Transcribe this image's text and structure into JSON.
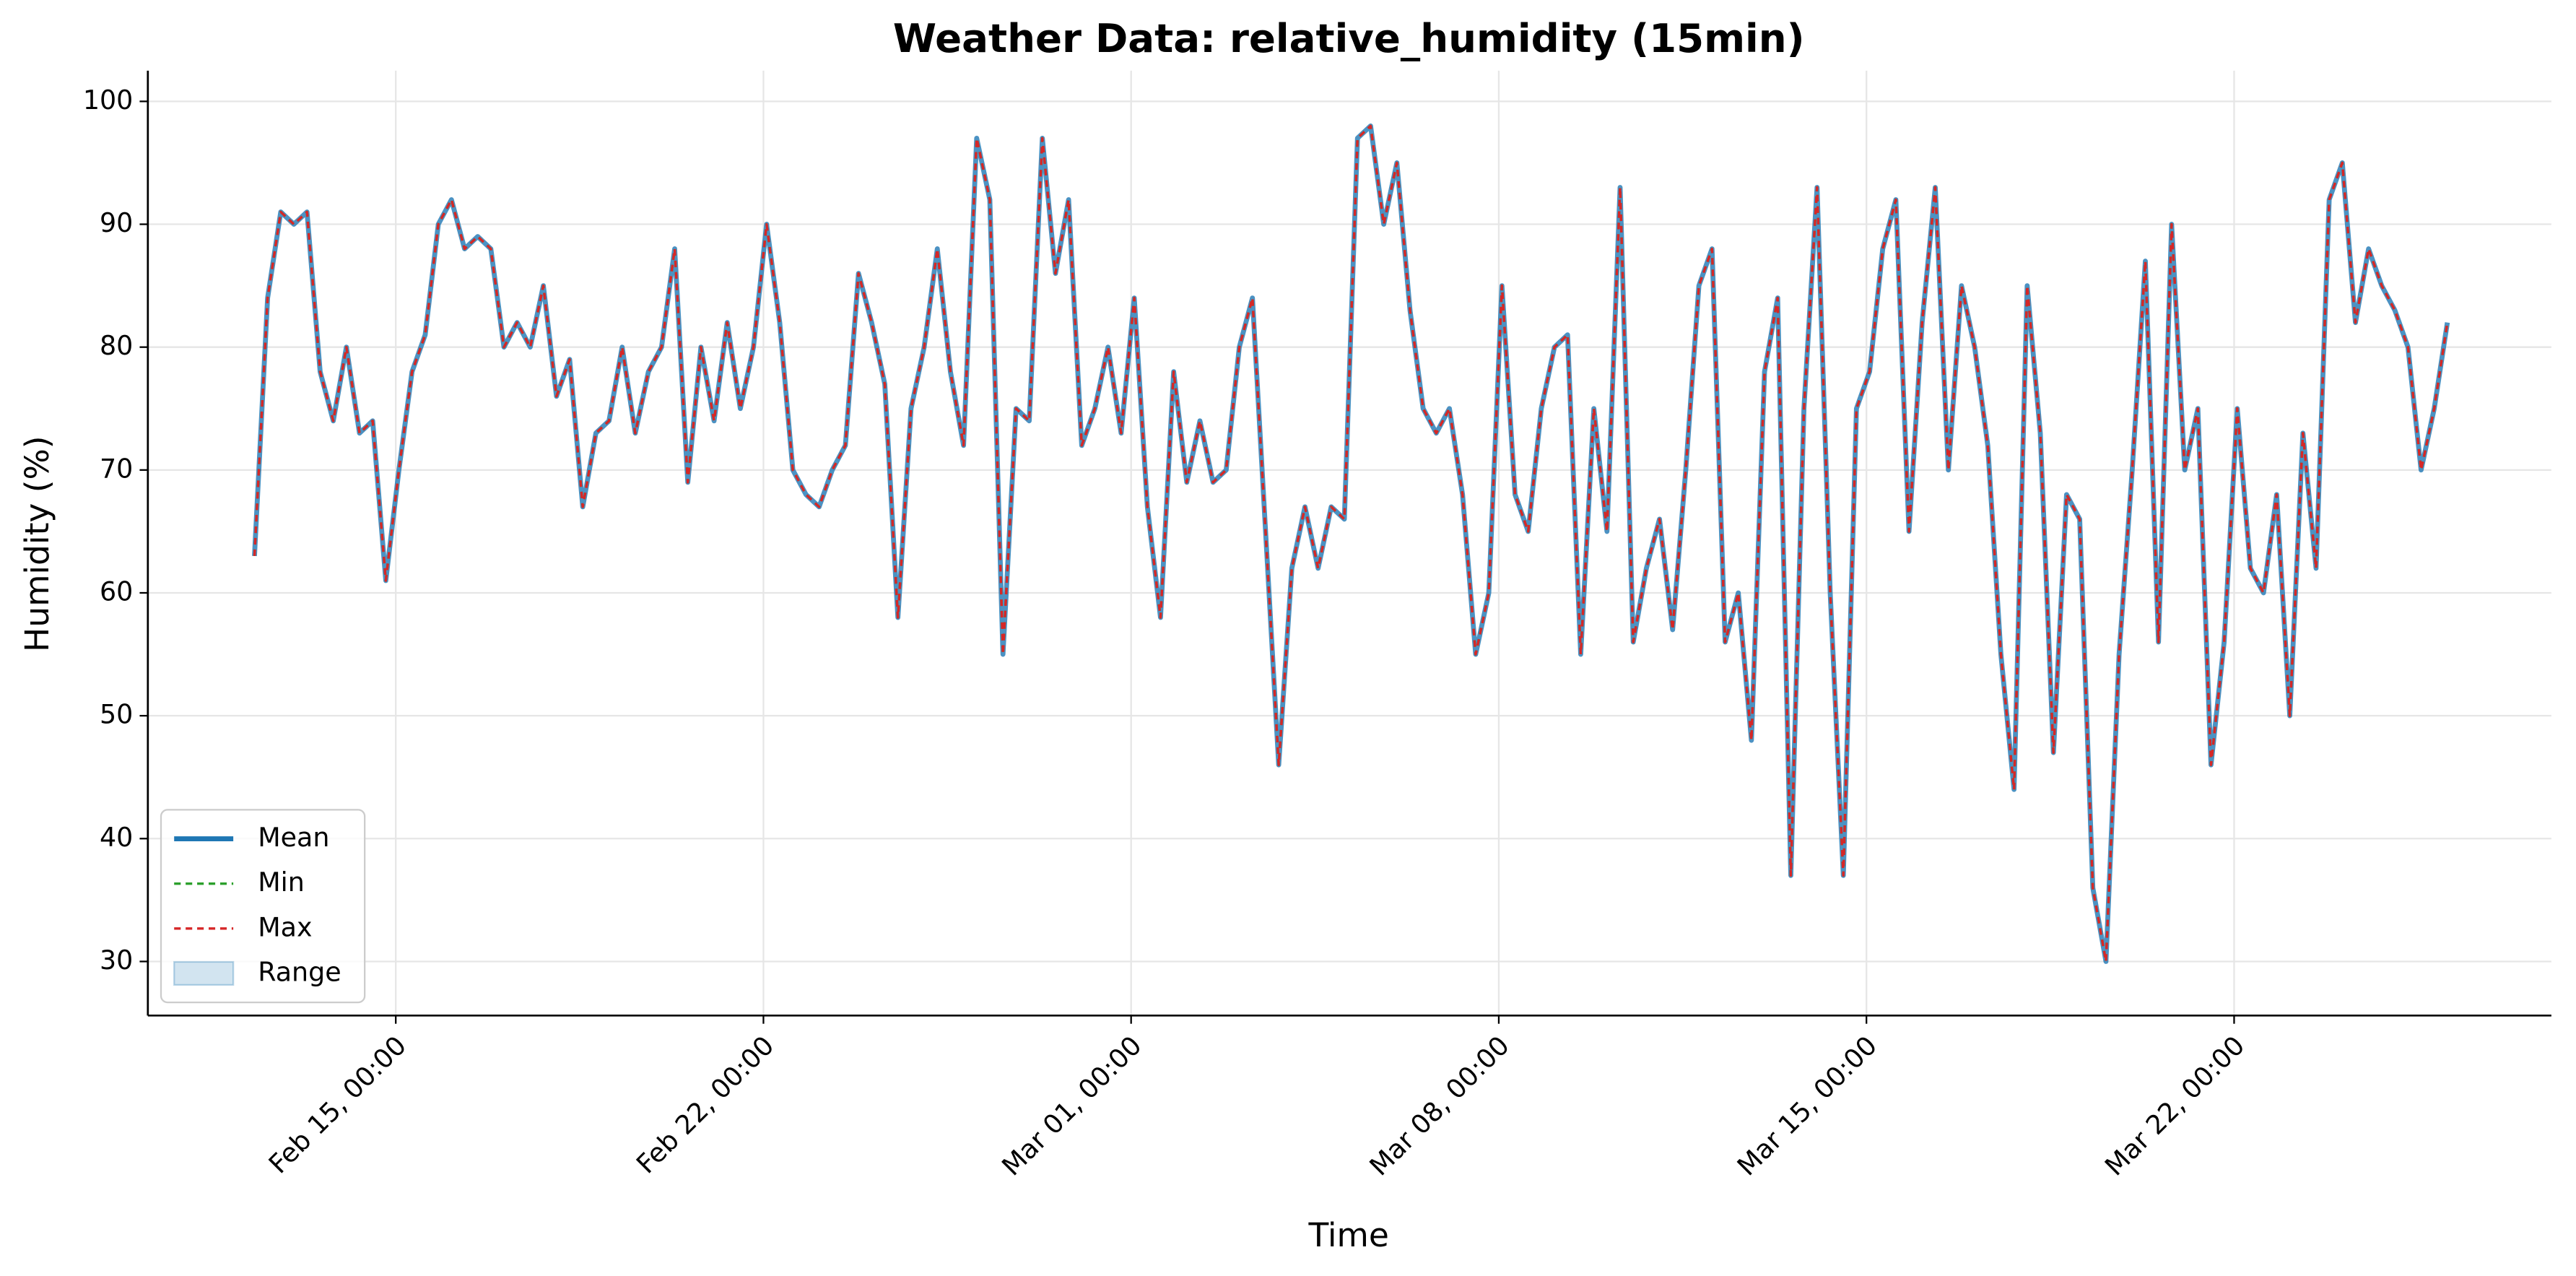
{
  "chart_data": {
    "type": "line",
    "title": "Weather Data: relative_humidity (15min)",
    "x_label": "Time",
    "y_label": "Humidity (%)",
    "x": [
      43.31,
      43.56,
      43.81,
      44.06,
      44.31,
      44.56,
      44.81,
      45.06,
      45.31,
      45.56,
      45.81,
      46.06,
      46.31,
      46.56,
      46.81,
      47.06,
      47.31,
      47.56,
      47.81,
      48.06,
      48.31,
      48.56,
      48.81,
      49.06,
      49.31,
      49.56,
      49.81,
      50.06,
      50.31,
      50.56,
      50.81,
      51.06,
      51.31,
      51.56,
      51.81,
      52.06,
      52.31,
      52.56,
      52.81,
      53.06,
      53.31,
      53.56,
      53.81,
      54.06,
      54.31,
      54.56,
      54.81,
      55.06,
      55.31,
      55.56,
      55.81,
      56.06,
      56.31,
      56.56,
      56.81,
      57.06,
      57.31,
      57.56,
      57.81,
      58.06,
      58.31,
      58.56,
      58.81,
      59.06,
      59.31,
      59.56,
      59.81,
      60.06,
      60.31,
      60.56,
      60.81,
      61.06,
      61.31,
      61.56,
      61.81,
      62.06,
      62.31,
      62.56,
      62.81,
      63.06,
      63.31,
      63.56,
      63.81,
      64.06,
      64.31,
      64.56,
      64.81,
      65.06,
      65.31,
      65.56,
      65.81,
      66.06,
      66.31,
      66.56,
      66.81,
      67.06,
      67.31,
      67.56,
      67.81,
      68.06,
      68.31,
      68.56,
      68.81,
      69.06,
      69.31,
      69.56,
      69.81,
      70.06,
      70.31,
      70.56,
      70.81,
      71.06,
      71.31,
      71.56,
      71.81,
      72.06,
      72.31,
      72.56,
      72.81,
      73.06,
      73.31,
      73.56,
      73.81,
      74.06,
      74.31,
      74.56,
      74.81,
      75.06,
      75.31,
      75.56,
      75.81,
      76.06,
      76.31,
      76.56,
      76.81,
      77.06,
      77.31,
      77.56,
      77.81,
      78.06,
      78.31,
      78.56,
      78.81,
      79.06,
      79.31,
      79.56,
      79.81,
      80.06,
      80.31,
      80.56,
      80.81,
      81.06,
      81.31,
      81.56,
      81.81,
      82.06,
      82.31,
      82.56,
      82.81,
      83.06,
      83.31,
      83.56,
      83.81,
      84.06,
      84.31,
      84.56,
      84.81,
      85.06
    ],
    "series": [
      {
        "name": "Mean",
        "color": "#1f77b4",
        "style": "solid",
        "values": [
          63,
          84,
          91,
          90,
          91,
          78,
          74,
          80,
          73,
          74,
          61,
          70,
          78,
          81,
          90,
          92,
          88,
          89,
          88,
          80,
          82,
          80,
          85,
          76,
          79,
          67,
          73,
          74,
          80,
          73,
          78,
          80,
          88,
          69,
          80,
          74,
          82,
          75,
          80,
          90,
          82,
          70,
          68,
          67,
          70,
          72,
          86,
          82,
          77,
          58,
          75,
          80,
          88,
          78,
          72,
          97,
          92,
          55,
          75,
          74,
          97,
          86,
          92,
          72,
          75,
          80,
          73,
          84,
          67,
          58,
          78,
          69,
          74,
          69,
          70,
          80,
          84,
          65,
          46,
          62,
          67,
          62,
          67,
          66,
          97,
          98,
          90,
          95,
          83,
          75,
          73,
          75,
          68,
          55,
          60,
          85,
          68,
          65,
          75,
          80,
          81,
          55,
          75,
          65,
          93,
          56,
          62,
          66,
          57,
          70,
          85,
          88,
          56,
          60,
          48,
          78,
          84,
          37,
          75,
          93,
          60,
          37,
          75,
          78,
          88,
          92,
          65,
          82,
          93,
          70,
          85,
          80,
          72,
          55,
          44,
          85,
          73,
          47,
          68,
          66,
          36,
          30,
          55,
          70,
          87,
          56,
          90,
          70,
          75,
          46,
          56,
          75,
          62,
          60,
          68,
          50,
          73,
          62,
          92,
          95,
          82,
          88,
          85,
          83,
          80,
          70,
          75,
          82
        ]
      },
      {
        "name": "Min",
        "color": "#2ca02c",
        "style": "dashed",
        "values": [
          63,
          84,
          91,
          90,
          91,
          78,
          74,
          80,
          73,
          74,
          61,
          70,
          78,
          81,
          90,
          92,
          88,
          89,
          88,
          80,
          82,
          80,
          85,
          76,
          79,
          67,
          73,
          74,
          80,
          73,
          78,
          80,
          88,
          69,
          80,
          74,
          82,
          75,
          80,
          90,
          82,
          70,
          68,
          67,
          70,
          72,
          86,
          82,
          77,
          58,
          75,
          80,
          88,
          78,
          72,
          97,
          92,
          55,
          75,
          74,
          97,
          86,
          92,
          72,
          75,
          80,
          73,
          84,
          67,
          58,
          78,
          69,
          74,
          69,
          70,
          80,
          84,
          65,
          46,
          62,
          67,
          62,
          67,
          66,
          97,
          98,
          90,
          95,
          83,
          75,
          73,
          75,
          68,
          55,
          60,
          85,
          68,
          65,
          75,
          80,
          81,
          55,
          75,
          65,
          93,
          56,
          62,
          66,
          57,
          70,
          85,
          88,
          56,
          60,
          48,
          78,
          84,
          37,
          75,
          93,
          60,
          37,
          75,
          78,
          88,
          92,
          65,
          82,
          93,
          70,
          85,
          80,
          72,
          55,
          44,
          85,
          73,
          47,
          68,
          66,
          36,
          30,
          55,
          70,
          87,
          56,
          90,
          70,
          75,
          46,
          56,
          75,
          62,
          60,
          68,
          50,
          73,
          62,
          92,
          95,
          82,
          88,
          85,
          83,
          80,
          70,
          75,
          82
        ]
      },
      {
        "name": "Max",
        "color": "#d62728",
        "style": "dashed",
        "values": [
          63,
          84,
          91,
          90,
          91,
          78,
          74,
          80,
          73,
          74,
          61,
          70,
          78,
          81,
          90,
          92,
          88,
          89,
          88,
          80,
          82,
          80,
          85,
          76,
          79,
          67,
          73,
          74,
          80,
          73,
          78,
          80,
          88,
          69,
          80,
          74,
          82,
          75,
          80,
          90,
          82,
          70,
          68,
          67,
          70,
          72,
          86,
          82,
          77,
          58,
          75,
          80,
          88,
          78,
          72,
          97,
          92,
          55,
          75,
          74,
          97,
          86,
          92,
          72,
          75,
          80,
          73,
          84,
          67,
          58,
          78,
          69,
          74,
          69,
          70,
          80,
          84,
          65,
          46,
          62,
          67,
          62,
          67,
          66,
          97,
          98,
          90,
          95,
          83,
          75,
          73,
          75,
          68,
          55,
          60,
          85,
          68,
          65,
          75,
          80,
          81,
          55,
          75,
          65,
          93,
          56,
          62,
          66,
          57,
          70,
          85,
          88,
          56,
          60,
          48,
          78,
          84,
          37,
          75,
          93,
          60,
          37,
          75,
          78,
          88,
          92,
          65,
          82,
          93,
          70,
          85,
          80,
          72,
          55,
          44,
          85,
          73,
          47,
          68,
          66,
          36,
          30,
          55,
          70,
          87,
          56,
          90,
          70,
          75,
          46,
          56,
          75,
          62,
          60,
          68,
          50,
          73,
          62,
          92,
          95,
          82,
          88,
          85,
          83,
          80,
          70,
          75,
          82
        ]
      }
    ],
    "range": {
      "name": "Range",
      "color": "#1f77b4"
    },
    "xlim": [
      41.28,
      87.04
    ],
    "xticks": [
      {
        "value": 46,
        "label": "Feb 15, 00:00"
      },
      {
        "value": 53,
        "label": "Feb 22, 00:00"
      },
      {
        "value": 60,
        "label": "Mar 01, 00:00"
      },
      {
        "value": 67,
        "label": "Mar 08, 00:00"
      },
      {
        "value": 74,
        "label": "Mar 15, 00:00"
      },
      {
        "value": 81,
        "label": "Mar 22, 00:00"
      }
    ],
    "ylim": [
      25.6,
      102.5
    ],
    "yticks": [
      30,
      40,
      50,
      60,
      70,
      80,
      90,
      100
    ],
    "grid": true,
    "legend": "lower left"
  }
}
